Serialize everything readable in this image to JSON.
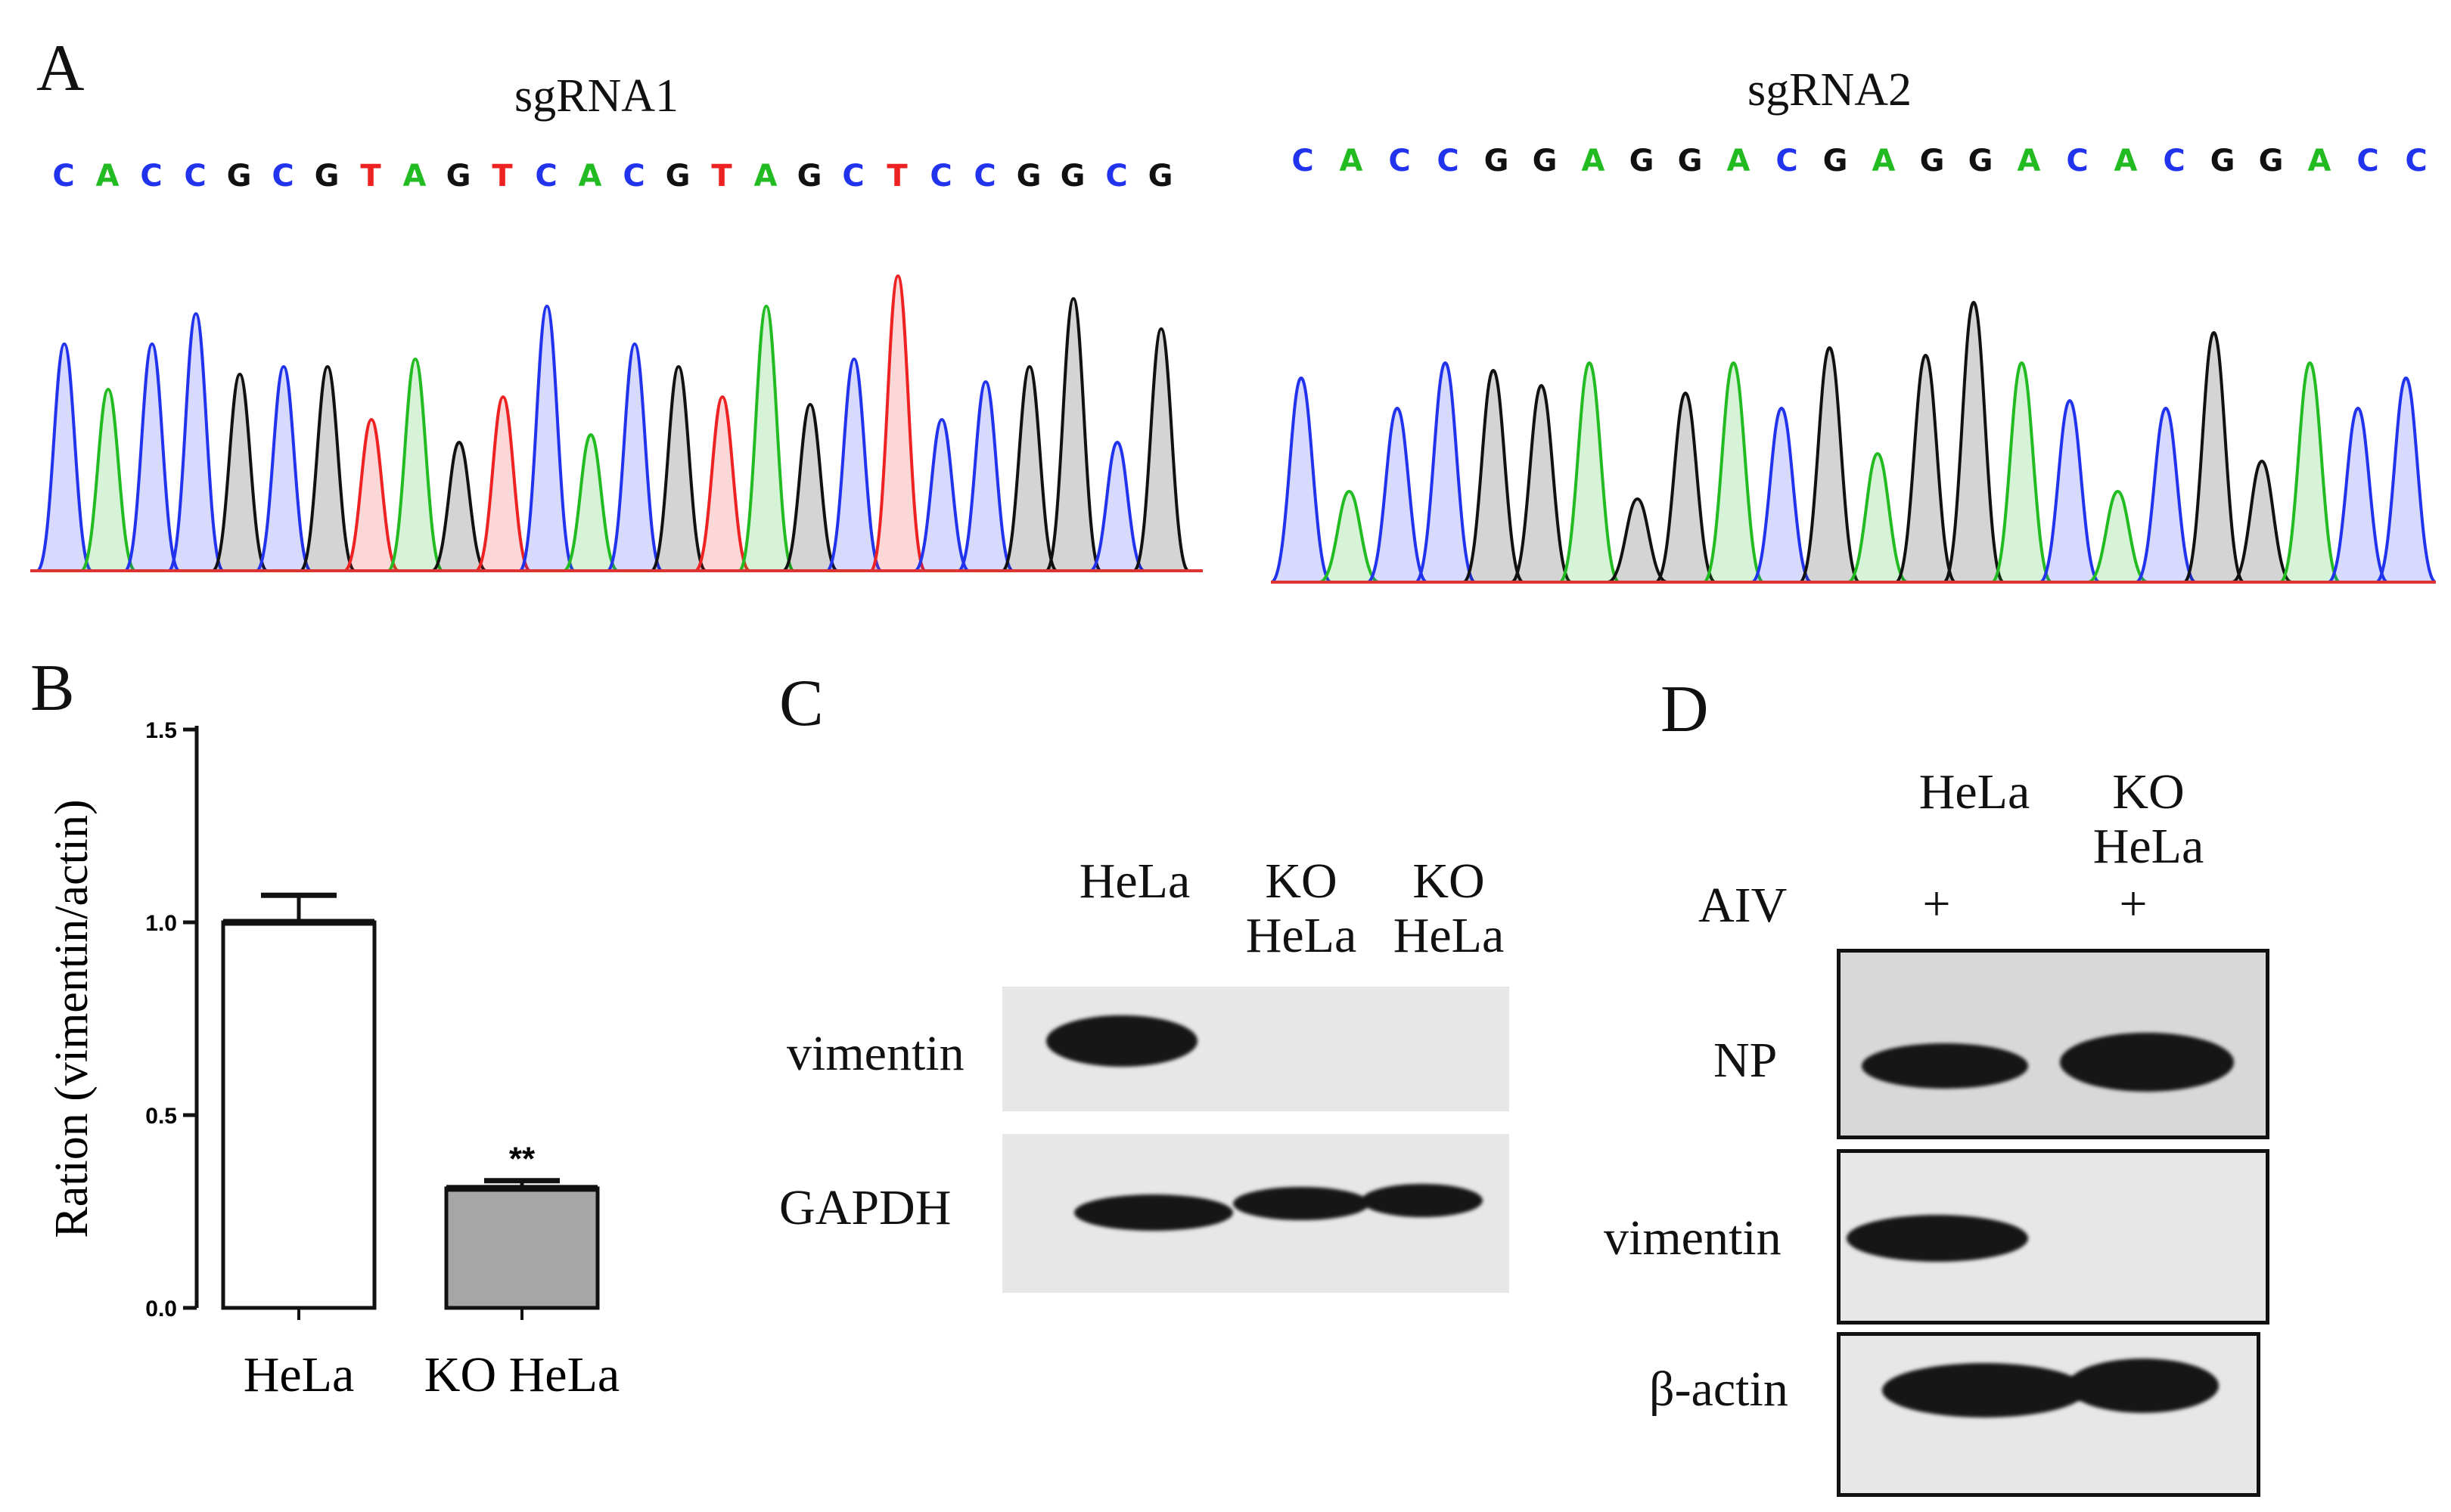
{
  "panels": {
    "a": {
      "letter": "A"
    },
    "b": {
      "letter": "B"
    },
    "c": {
      "letter": "C"
    },
    "d": {
      "letter": "D"
    }
  },
  "sequencing": [
    {
      "title": "sgRNA1",
      "bases": [
        "C",
        "A",
        "C",
        "C",
        "G",
        "C",
        "G",
        "T",
        "A",
        "G",
        "T",
        "C",
        "A",
        "C",
        "G",
        "T",
        "A",
        "G",
        "C",
        "T",
        "C",
        "C",
        "G",
        "G",
        "C",
        "G"
      ]
    },
    {
      "title": "sgRNA2",
      "bases": [
        "C",
        "A",
        "C",
        "C",
        "G",
        "G",
        "A",
        "G",
        "G",
        "A",
        "C",
        "G",
        "A",
        "G",
        "G",
        "A",
        "C",
        "A",
        "C",
        "G",
        "G",
        "A",
        "C",
        "C"
      ]
    }
  ],
  "base_colors": {
    "A": "#22bb22",
    "C": "#2233ee",
    "G": "#111111",
    "T": "#ee2222"
  },
  "chart_data": {
    "type": "bar",
    "categories": [
      "HeLa",
      "KO HeLa"
    ],
    "values": [
      1.0,
      0.31
    ],
    "errors": [
      0.07,
      0.02
    ],
    "bar_colors": [
      "#ffffff",
      "#a6a6a6"
    ],
    "ylabel": "Ration (vimentin/actin)",
    "ylim": [
      0,
      1.5
    ],
    "yticks": [
      "0.0",
      "0.5",
      "1.0",
      "1.5"
    ],
    "significance": [
      "",
      "**"
    ]
  },
  "blot_c": {
    "lanes": [
      "HeLa",
      "KO\nHeLa",
      "KO\nHeLa"
    ],
    "rows": [
      {
        "label": "vimentin",
        "bands": [
          1.0,
          0,
          0
        ]
      },
      {
        "label": "GAPDH",
        "bands": [
          1.0,
          1.0,
          1.0
        ]
      }
    ]
  },
  "blot_d": {
    "lanes": [
      "HeLa",
      "KO\nHeLa"
    ],
    "treatment_label": "AIV",
    "treatment": [
      "+",
      "+"
    ],
    "rows": [
      {
        "label": "NP",
        "bands": [
          1.0,
          1.0
        ]
      },
      {
        "label": "vimentin",
        "bands": [
          1.0,
          0
        ]
      },
      {
        "label": "β-actin",
        "bands": [
          1.0,
          1.0
        ]
      }
    ]
  }
}
